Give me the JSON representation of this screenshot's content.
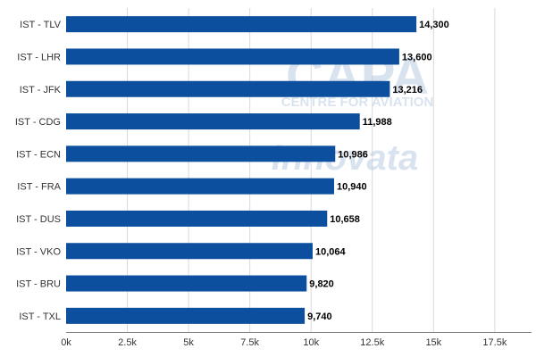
{
  "chart_data": {
    "type": "bar",
    "orientation": "horizontal",
    "categories": [
      "IST - TLV",
      "IST - LHR",
      "IST - JFK",
      "IST - CDG",
      "IST - ECN",
      "IST - FRA",
      "IST - DUS",
      "IST - VKO",
      "IST - BRU",
      "IST - TXL"
    ],
    "values": [
      14300,
      13600,
      13216,
      11988,
      10986,
      10940,
      10658,
      10064,
      9820,
      9740
    ],
    "data_labels": [
      "14,300",
      "13,600",
      "13,216",
      "11,988",
      "10,986",
      "10,940",
      "10,658",
      "10,064",
      "9,820",
      "9,740"
    ],
    "x_ticks": [
      0,
      2500,
      5000,
      7500,
      10000,
      12500,
      15000,
      17500
    ],
    "x_tick_labels": [
      "0k",
      "2.5k",
      "5k",
      "7.5k",
      "10k",
      "12.5k",
      "15k",
      "17.5k"
    ],
    "xlim": [
      0,
      19000
    ],
    "grid": true,
    "bar_color": "#0b4f9e",
    "title": "",
    "xlabel": "",
    "ylabel": ""
  },
  "watermark": {
    "line1": "CAPA",
    "line2": "CENTRE FOR AVIATION",
    "line3": "Innovata"
  }
}
